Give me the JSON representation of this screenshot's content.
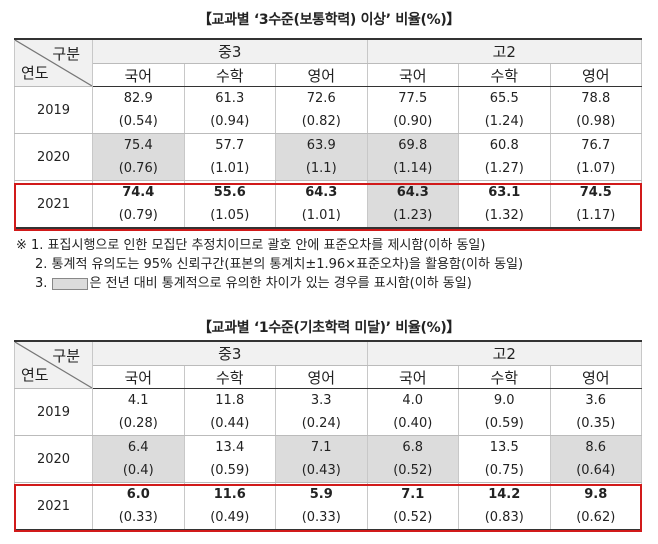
{
  "table1": {
    "title": "【교과별 ‘3수준(보통학력) 이상’ 비율(%)】",
    "corner_top": "구분",
    "corner_bottom": "연도",
    "groups": [
      "중3",
      "고2"
    ],
    "subjects": [
      "국어",
      "수학",
      "영어",
      "국어",
      "수학",
      "영어"
    ],
    "rows": [
      {
        "year": "2019",
        "values": [
          "82.9",
          "61.3",
          "72.6",
          "77.5",
          "65.5",
          "78.8"
        ],
        "se": [
          "(0.54)",
          "(0.94)",
          "(0.82)",
          "(0.90)",
          "(1.24)",
          "(0.98)"
        ],
        "shaded": [
          false,
          false,
          false,
          false,
          false,
          false
        ],
        "bold": false
      },
      {
        "year": "2020",
        "values": [
          "75.4",
          "57.7",
          "63.9",
          "69.8",
          "60.8",
          "76.7"
        ],
        "se": [
          "(0.76)",
          "(1.01)",
          "(1.1)",
          "(1.14)",
          "(1.27)",
          "(1.07)"
        ],
        "shaded": [
          true,
          false,
          true,
          true,
          false,
          false
        ],
        "bold": false
      },
      {
        "year": "2021",
        "values": [
          "74.4",
          "55.6",
          "64.3",
          "64.3",
          "63.1",
          "74.5"
        ],
        "se": [
          "(0.79)",
          "(1.05)",
          "(1.01)",
          "(1.23)",
          "(1.32)",
          "(1.17)"
        ],
        "shaded": [
          false,
          false,
          false,
          true,
          false,
          false
        ],
        "bold": true
      }
    ]
  },
  "notes": {
    "line1": "※ 1. 표집시행으로 인한 모집단 추정치이므로 괄호 안에 표준오차를 제시함(이하 동일)",
    "line2": "2. 통계적 유의도는 95% 신뢰구간(표본의 통계치±1.96×표준오차)을 활용함(이하 동일)",
    "line3_prefix": "3.",
    "line3_suffix": "은 전년 대비 통계적으로 유의한 차이가 있는 경우를 표시함(이하 동일)"
  },
  "table2": {
    "title": "【교과별 ‘1수준(기초학력 미달)’ 비율(%)】",
    "corner_top": "구분",
    "corner_bottom": "연도",
    "groups": [
      "중3",
      "고2"
    ],
    "subjects": [
      "국어",
      "수학",
      "영어",
      "국어",
      "수학",
      "영어"
    ],
    "rows": [
      {
        "year": "2019",
        "values": [
          "4.1",
          "11.8",
          "3.3",
          "4.0",
          "9.0",
          "3.6"
        ],
        "se": [
          "(0.28)",
          "(0.44)",
          "(0.24)",
          "(0.40)",
          "(0.59)",
          "(0.35)"
        ],
        "shaded": [
          false,
          false,
          false,
          false,
          false,
          false
        ],
        "bold": false
      },
      {
        "year": "2020",
        "values": [
          "6.4",
          "13.4",
          "7.1",
          "6.8",
          "13.5",
          "8.6"
        ],
        "se": [
          "(0.4)",
          "(0.59)",
          "(0.43)",
          "(0.52)",
          "(0.75)",
          "(0.64)"
        ],
        "shaded": [
          true,
          false,
          true,
          true,
          false,
          true
        ],
        "bold": false
      },
      {
        "year": "2021",
        "values": [
          "6.0",
          "11.6",
          "5.9",
          "7.1",
          "14.2",
          "9.8"
        ],
        "se": [
          "(0.33)",
          "(0.49)",
          "(0.33)",
          "(0.52)",
          "(0.83)",
          "(0.62)"
        ],
        "shaded": [
          false,
          false,
          false,
          false,
          false,
          false
        ],
        "bold": true
      }
    ]
  },
  "colors": {
    "highlight_box": "#d11a1a",
    "shade": "#dcdcdc",
    "header_bg": "#f1f1f1"
  }
}
